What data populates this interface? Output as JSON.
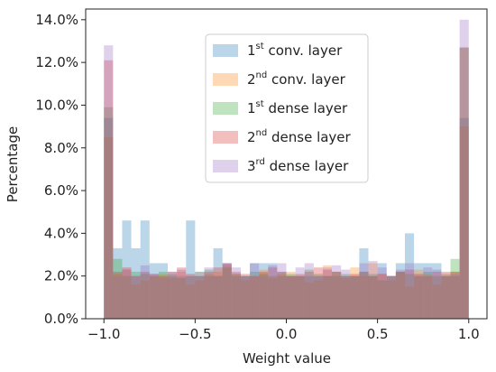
{
  "chart_data": {
    "type": "bar",
    "title": "",
    "xlabel": "Weight value",
    "ylabel": "Percentage",
    "xlim": [
      -1.1,
      1.1
    ],
    "ylim": [
      0,
      14.5
    ],
    "xticks": [
      -1.0,
      -0.5,
      0.0,
      0.5,
      1.0
    ],
    "xtick_labels": [
      "−1.0",
      "−0.5",
      "0.0",
      "0.5",
      "1.0"
    ],
    "yticks": [
      0,
      2,
      4,
      6,
      8,
      10,
      12,
      14
    ],
    "ytick_labels": [
      "0.0%",
      "2.0%",
      "4.0%",
      "6.0%",
      "8.0%",
      "10.0%",
      "12.0%",
      "14.0%"
    ],
    "grid": false,
    "legend_position": "upper-center",
    "bins": {
      "start": -1.0,
      "end": 1.0,
      "count": 40
    },
    "series": [
      {
        "name": "1st conv. layer",
        "legend_base": "1",
        "legend_sup": "st",
        "legend_rest": " conv. layer",
        "color": "#1f77b4",
        "values": [
          9.4,
          3.3,
          4.6,
          3.3,
          4.6,
          2.6,
          2.6,
          2.0,
          2.0,
          4.6,
          2.0,
          2.0,
          3.3,
          2.6,
          2.0,
          2.0,
          2.6,
          2.6,
          2.6,
          2.0,
          2.0,
          2.0,
          2.0,
          2.0,
          2.0,
          2.0,
          2.0,
          2.0,
          3.3,
          2.0,
          2.6,
          2.0,
          2.6,
          4.0,
          2.6,
          2.6,
          2.6,
          2.0,
          2.0,
          9.4
        ]
      },
      {
        "name": "2nd conv. layer",
        "legend_base": "2",
        "legend_sup": "nd",
        "legend_rest": " conv. layer",
        "color": "#ff7f0e",
        "values": [
          8.5,
          2.1,
          2.3,
          1.6,
          1.8,
          2.0,
          2.1,
          1.9,
          2.2,
          1.6,
          1.8,
          2.1,
          2.2,
          2.5,
          2.1,
          1.8,
          2.0,
          2.3,
          1.9,
          2.1,
          2.2,
          2.0,
          1.7,
          1.8,
          2.5,
          2.2,
          1.9,
          2.4,
          2.0,
          2.6,
          2.1,
          1.8,
          2.2,
          1.5,
          2.3,
          2.1,
          1.6,
          2.0,
          2.2,
          9.0
        ]
      },
      {
        "name": "1st dense layer",
        "legend_base": "1",
        "legend_sup": "st",
        "legend_rest": " dense layer",
        "color": "#2ca02c",
        "values": [
          9.9,
          2.8,
          2.0,
          2.2,
          2.1,
          2.0,
          2.2,
          2.1,
          1.9,
          2.0,
          2.2,
          2.3,
          2.0,
          2.4,
          2.1,
          2.0,
          2.2,
          2.1,
          2.0,
          2.2,
          2.1,
          2.0,
          2.3,
          2.1,
          2.0,
          2.2,
          2.1,
          2.0,
          2.2,
          2.1,
          1.8,
          2.0,
          2.2,
          2.1,
          2.0,
          2.2,
          2.0,
          2.1,
          2.8,
          12.7
        ]
      },
      {
        "name": "2nd dense layer",
        "legend_base": "2",
        "legend_sup": "nd",
        "legend_rest": " dense layer",
        "color": "#d62728",
        "values": [
          12.1,
          2.2,
          2.4,
          2.0,
          2.2,
          2.1,
          2.0,
          2.2,
          2.4,
          2.1,
          2.0,
          2.2,
          2.4,
          2.6,
          2.2,
          2.1,
          2.0,
          2.2,
          2.4,
          2.2,
          2.0,
          2.1,
          2.2,
          2.4,
          2.3,
          2.2,
          2.0,
          2.1,
          2.2,
          2.0,
          2.1,
          2.0,
          2.2,
          2.3,
          2.1,
          2.0,
          2.2,
          2.2,
          2.2,
          12.7
        ]
      },
      {
        "name": "3rd dense layer",
        "legend_base": "3",
        "legend_sup": "rd",
        "legend_rest": " dense layer",
        "color": "#9467bd",
        "values": [
          12.8,
          2.0,
          2.3,
          2.0,
          2.5,
          2.1,
          1.9,
          2.2,
          2.3,
          2.0,
          2.2,
          2.4,
          2.0,
          2.6,
          2.4,
          2.0,
          2.6,
          2.0,
          2.5,
          2.6,
          2.0,
          2.4,
          2.6,
          2.0,
          2.4,
          2.5,
          2.3,
          2.0,
          2.6,
          2.7,
          2.4,
          2.0,
          2.3,
          2.6,
          2.0,
          2.4,
          2.3,
          2.0,
          2.1,
          14.0
        ]
      }
    ]
  }
}
